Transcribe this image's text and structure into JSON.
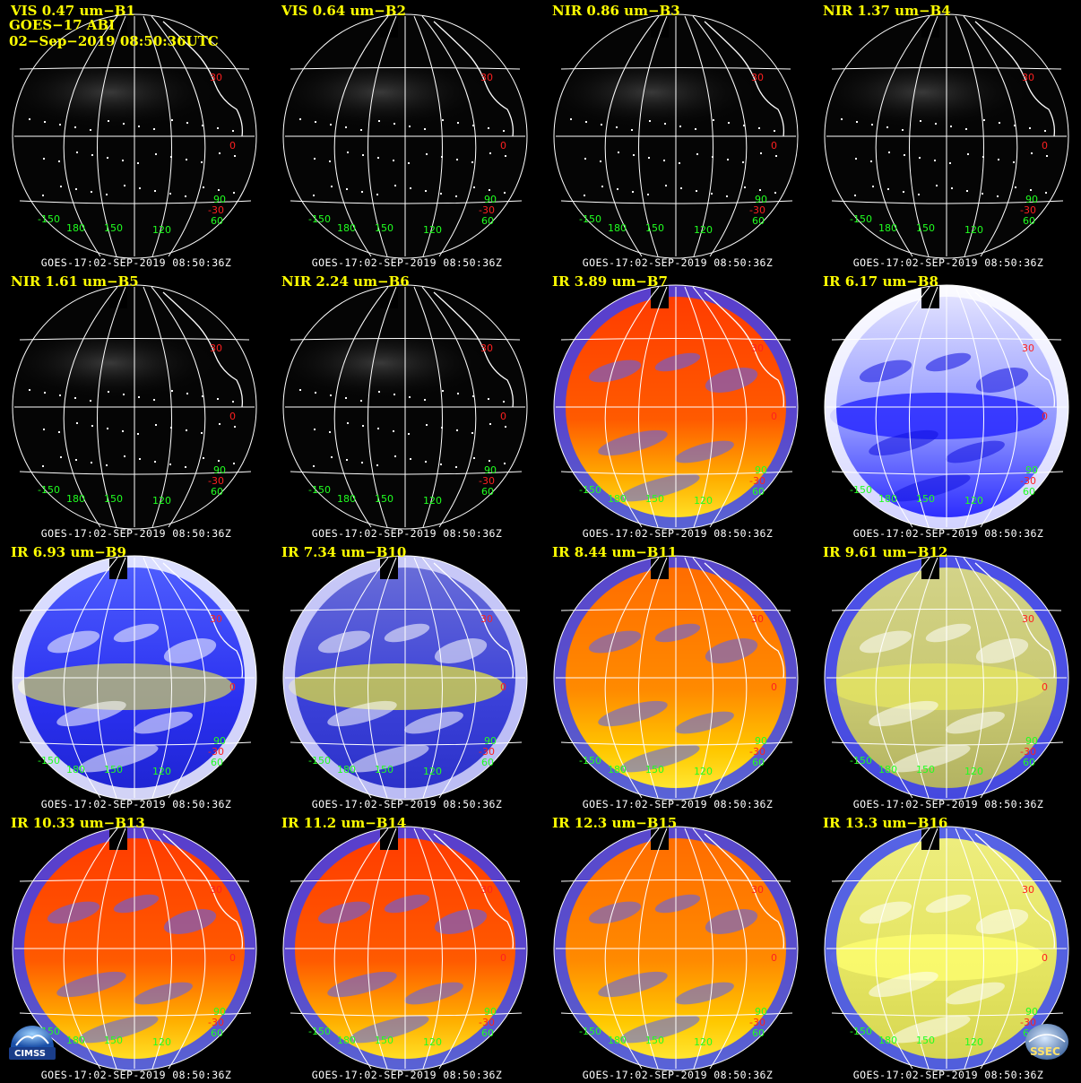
{
  "header": {
    "line2": "GOES−17 ABI",
    "line3": "02−Sep−2019 08:50:36UTC"
  },
  "footer_text": "GOES-17:02-SEP-2019 08:50:36Z",
  "lat_labels": [
    "30",
    "0",
    "-30"
  ],
  "lon_labels": [
    "-150",
    "180",
    "150",
    "120",
    "60",
    "90"
  ],
  "colors": {
    "title": "#ffff00",
    "grid": "#ffffff",
    "lat_label": "#ff2020",
    "lon_label": "#20ff20"
  },
  "logos": {
    "left": "CIMSS",
    "right": "SSEC"
  },
  "panels": [
    {
      "title": "VIS 0.47 um−B1",
      "scheme": "vis"
    },
    {
      "title": "VIS 0.64 um−B2",
      "scheme": "vis"
    },
    {
      "title": "NIR 0.86 um−B3",
      "scheme": "vis"
    },
    {
      "title": "NIR 1.37 um−B4",
      "scheme": "vis"
    },
    {
      "title": "NIR 1.61 um−B5",
      "scheme": "vis"
    },
    {
      "title": "NIR 2.24 um−B6",
      "scheme": "vis"
    },
    {
      "title": "IR 3.89 um−B7",
      "scheme": "ir-warm"
    },
    {
      "title": "IR 6.17 um−B8",
      "scheme": "wv-light"
    },
    {
      "title": "IR 6.93 um−B9",
      "scheme": "wv-blue"
    },
    {
      "title": "IR 7.34 um−B10",
      "scheme": "wv-yellow"
    },
    {
      "title": "IR 8.44 um−B11",
      "scheme": "ir-orange"
    },
    {
      "title": "IR 9.61 um−B12",
      "scheme": "ozone"
    },
    {
      "title": "IR 10.33 um−B13",
      "scheme": "ir-warm"
    },
    {
      "title": "IR 11.2 um−B14",
      "scheme": "ir-warm"
    },
    {
      "title": "IR 12.3 um−B15",
      "scheme": "ir-orange"
    },
    {
      "title": "IR 13.3 um−B16",
      "scheme": "co2"
    }
  ]
}
